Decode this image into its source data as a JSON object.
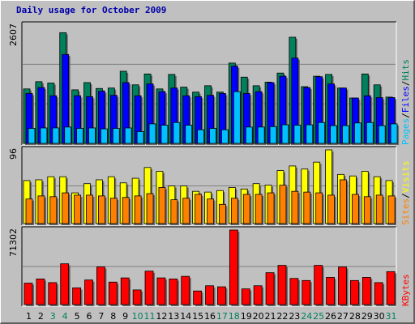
{
  "chart_data": {
    "type": "bar",
    "title": "Daily usage for October 2009",
    "categories": [
      "1",
      "2",
      "3",
      "4",
      "5",
      "6",
      "7",
      "8",
      "9",
      "10",
      "11",
      "12",
      "13",
      "14",
      "15",
      "16",
      "17",
      "18",
      "19",
      "20",
      "21",
      "22",
      "23",
      "24",
      "25",
      "26",
      "27",
      "28",
      "29",
      "30",
      "31"
    ],
    "weekend_days": [
      "3",
      "4",
      "10",
      "11",
      "17",
      "18",
      "24",
      "25",
      "31"
    ],
    "panels": [
      {
        "axis_max_label": "2607",
        "ylim": [
          0,
          2607
        ],
        "legend": [
          "Pages",
          "/",
          "Files",
          "/",
          "Hits"
        ],
        "series": [
          {
            "name": "Hits",
            "color": "#00805c",
            "values": [
              1200,
              1360,
              1330,
              2440,
              1180,
              1340,
              1210,
              1220,
              1590,
              1290,
              1530,
              1200,
              1520,
              1240,
              1130,
              1270,
              1130,
              1770,
              1460,
              1270,
              1350,
              1550,
              2340,
              1250,
              1480,
              1520,
              1220,
              1000,
              1530,
              1290,
              1020
            ]
          },
          {
            "name": "Files",
            "color": "#0000ff",
            "values": [
              1100,
              1230,
              1050,
              1960,
              1050,
              1030,
              1150,
              1060,
              1340,
              1050,
              1310,
              1140,
              1220,
              1050,
              1030,
              1060,
              1100,
              1700,
              1100,
              1140,
              1340,
              1480,
              1880,
              1230,
              1470,
              1310,
              1220,
              1000,
              1050,
              1010,
              1010
            ]
          },
          {
            "name": "Pages",
            "color": "#00c0ff",
            "values": [
              330,
              340,
              340,
              360,
              330,
              340,
              320,
              330,
              340,
              260,
              430,
              400,
              460,
              400,
              300,
              330,
              300,
              1140,
              360,
              360,
              370,
              410,
              400,
              410,
              460,
              390,
              390,
              450,
              460,
              390,
              430
            ]
          }
        ]
      },
      {
        "axis_max_label": "96",
        "ylim": [
          0,
          96
        ],
        "legend": [
          "Sites",
          "/",
          "Visits"
        ],
        "series": [
          {
            "name": "Visits",
            "color": "#ffff00",
            "values": [
              56,
              57,
              61,
              61,
              40,
              52,
              57,
              61,
              53,
              59,
              73,
              68,
              49,
              49,
              42,
              41,
              43,
              47,
              45,
              52,
              50,
              69,
              75,
              71,
              80,
              96,
              64,
              62,
              68,
              61,
              56
            ]
          },
          {
            "name": "Sites",
            "color": "#ff8000",
            "values": [
              32,
              36,
              35,
              40,
              37,
              37,
              36,
              33,
              34,
              36,
              39,
              47,
              31,
              33,
              38,
              32,
              25,
              33,
              38,
              38,
              40,
              50,
              42,
              41,
              40,
              37,
              57,
              38,
              35,
              37,
              36
            ]
          }
        ]
      },
      {
        "axis_max_label": "71302",
        "ylim": [
          0,
          71302
        ],
        "legend": [
          "KBytes"
        ],
        "series": [
          {
            "name": "KBytes",
            "color": "#ff0000",
            "values": [
              20500,
              24500,
              21000,
              39000,
              16000,
              23500,
              36000,
              21500,
              25500,
              14000,
              32000,
              25500,
              24500,
              27000,
              13000,
              18000,
              17000,
              71302,
              15000,
              18000,
              30500,
              37500,
              25000,
              23000,
              37500,
              26000,
              36000,
              23000,
              26000,
              21000,
              31500
            ]
          }
        ]
      }
    ]
  }
}
